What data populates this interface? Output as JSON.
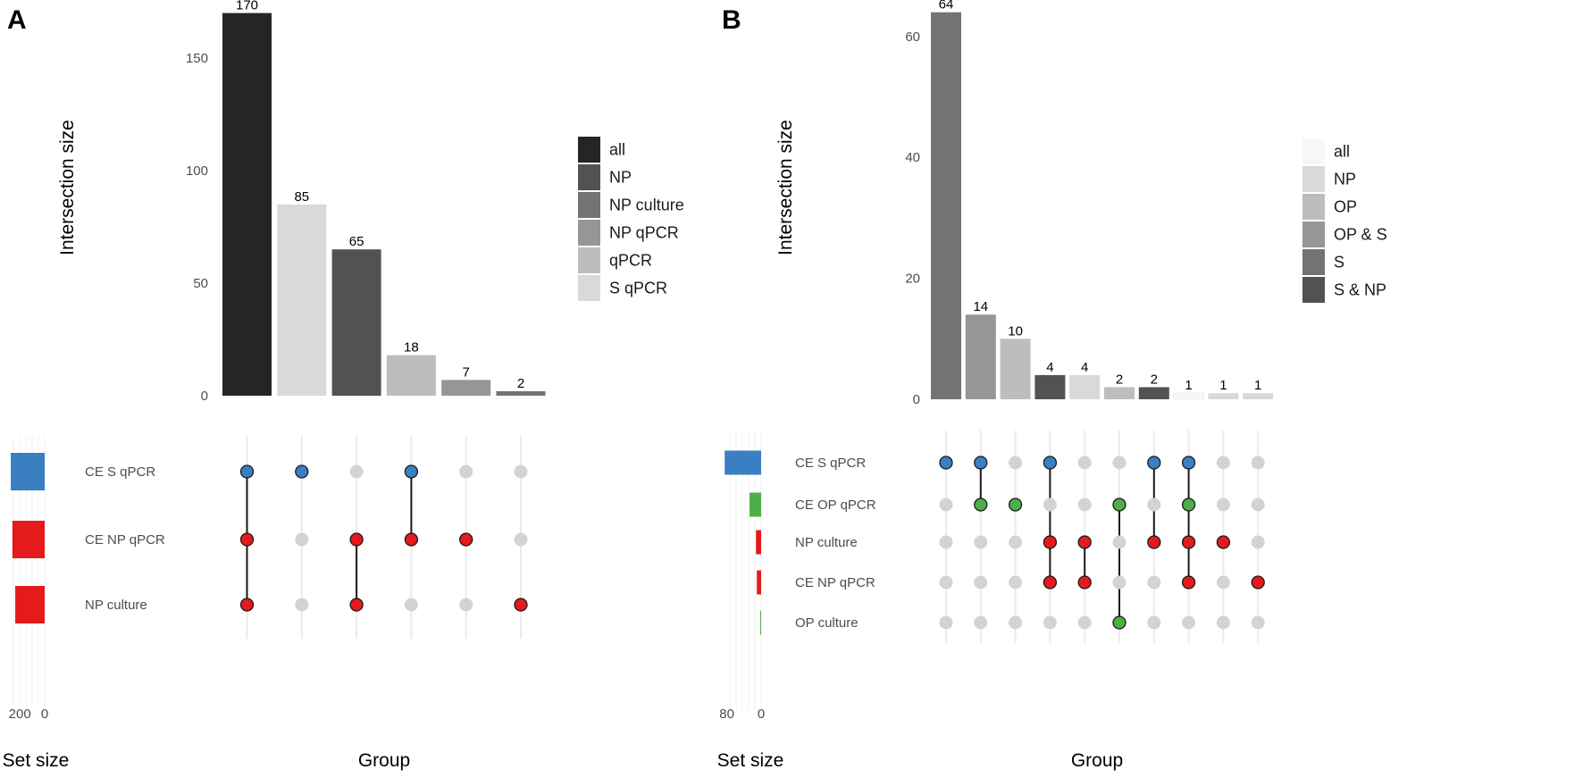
{
  "chart_data": [
    {
      "type": "bar",
      "panel": "A",
      "title": "",
      "ylabel": "Intersection size",
      "xlabel": "Group",
      "set_size_label": "Set size",
      "ylim": [
        0,
        175
      ],
      "yticks": [
        0,
        50,
        100,
        150
      ],
      "set_size_ticks": [
        "200",
        "0"
      ],
      "set_size_tick_values": [
        200,
        0
      ],
      "sets": [
        {
          "name": "CE S qPCR",
          "size": 273,
          "color": "#3a7fc1"
        },
        {
          "name": "CE NP qPCR",
          "size": 260,
          "color": "#e41a1c"
        },
        {
          "name": "NP culture",
          "size": 237,
          "color": "#e41a1c"
        }
      ],
      "legend": [
        {
          "label": "all",
          "color": "#252525"
        },
        {
          "label": "NP",
          "color": "#525252"
        },
        {
          "label": "NP culture",
          "color": "#737373"
        },
        {
          "label": "NP qPCR",
          "color": "#969696"
        },
        {
          "label": "qPCR",
          "color": "#bdbdbd"
        },
        {
          "label": "S qPCR",
          "color": "#d9d9d9"
        }
      ],
      "intersections": [
        {
          "value": 170,
          "label": "170",
          "group": "all",
          "members": [
            0,
            1,
            2
          ]
        },
        {
          "value": 85,
          "label": "85",
          "group": "S qPCR",
          "members": [
            0
          ]
        },
        {
          "value": 65,
          "label": "65",
          "group": "NP",
          "members": [
            1,
            2
          ]
        },
        {
          "value": 18,
          "label": "18",
          "group": "qPCR",
          "members": [
            0,
            1
          ]
        },
        {
          "value": 7,
          "label": "7",
          "group": "NP qPCR",
          "members": [
            1
          ]
        },
        {
          "value": 2,
          "label": "2",
          "group": "NP culture",
          "members": [
            2
          ]
        }
      ]
    },
    {
      "type": "bar",
      "panel": "B",
      "title": "",
      "ylabel": "Intersection size",
      "xlabel": "Group",
      "set_size_label": "Set size",
      "ylim": [
        0,
        66
      ],
      "yticks": [
        0,
        20,
        40,
        60
      ],
      "set_size_ticks": [
        "80",
        "0"
      ],
      "set_size_tick_values": [
        80,
        0
      ],
      "sets": [
        {
          "name": "CE S qPCR",
          "size": 85,
          "color": "#3a7fc1"
        },
        {
          "name": "CE OP qPCR",
          "size": 27,
          "color": "#4daf4a"
        },
        {
          "name": "NP culture",
          "size": 12,
          "color": "#e41a1c"
        },
        {
          "name": "CE NP qPCR",
          "size": 10,
          "color": "#e41a1c"
        },
        {
          "name": "OP culture",
          "size": 2,
          "color": "#4daf4a"
        }
      ],
      "legend": [
        {
          "label": "all",
          "color": "#f7f7f7"
        },
        {
          "label": "NP",
          "color": "#d9d9d9"
        },
        {
          "label": "OP",
          "color": "#bdbdbd"
        },
        {
          "label": "OP & S",
          "color": "#969696"
        },
        {
          "label": "S",
          "color": "#737373"
        },
        {
          "label": "S & NP",
          "color": "#525252"
        }
      ],
      "intersections": [
        {
          "value": 64,
          "label": "64",
          "group": "S",
          "members": [
            0
          ]
        },
        {
          "value": 14,
          "label": "14",
          "group": "OP & S",
          "members": [
            0,
            1
          ]
        },
        {
          "value": 10,
          "label": "10",
          "group": "OP",
          "members": [
            1
          ]
        },
        {
          "value": 4,
          "label": "4",
          "group": "S & NP",
          "members": [
            0,
            2,
            3
          ]
        },
        {
          "value": 4,
          "label": "4",
          "group": "NP",
          "members": [
            2,
            3
          ]
        },
        {
          "value": 2,
          "label": "2",
          "group": "OP",
          "members": [
            1,
            4
          ]
        },
        {
          "value": 2,
          "label": "2",
          "group": "S & NP",
          "members": [
            0,
            2
          ]
        },
        {
          "value": 1,
          "label": "1",
          "group": "all",
          "members": [
            0,
            1,
            2,
            3
          ]
        },
        {
          "value": 1,
          "label": "1",
          "group": "NP",
          "members": [
            2
          ]
        },
        {
          "value": 1,
          "label": "1",
          "group": "NP",
          "members": [
            3
          ]
        }
      ]
    }
  ],
  "panels": {
    "a_letter": "A",
    "b_letter": "B"
  }
}
